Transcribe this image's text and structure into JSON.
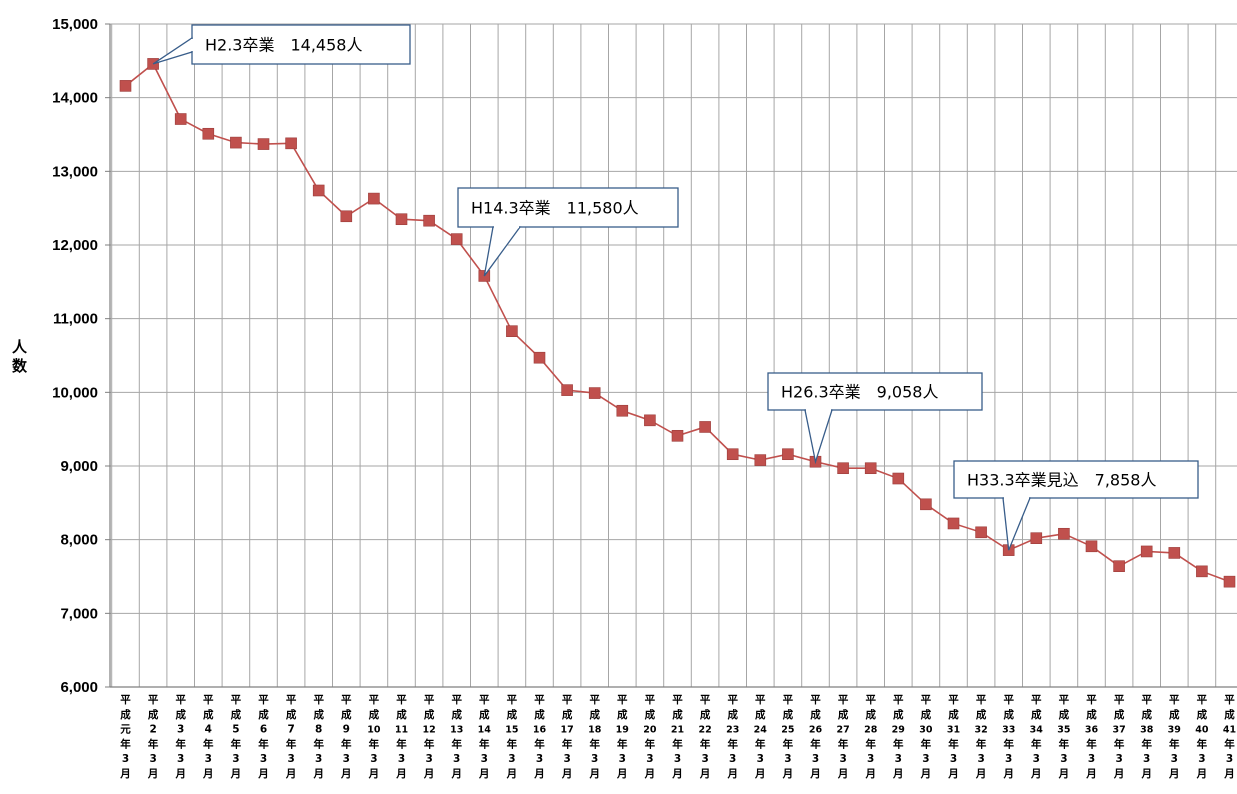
{
  "chart_data": {
    "type": "line",
    "title": "",
    "xlabel": "",
    "ylabel": "人数",
    "ylim": [
      6000,
      15000
    ],
    "y_ticks": [
      "6,000",
      "7,000",
      "8,000",
      "9,000",
      "10,000",
      "11,000",
      "12,000",
      "13,000",
      "14,000",
      "15,000"
    ],
    "grid": true,
    "series_color": "#C0504D",
    "categories": [
      "平成元年3月",
      "平成2年3月",
      "平成3年3月",
      "平成4年3月",
      "平成5年3月",
      "平成6年3月",
      "平成7年3月",
      "平成8年3月",
      "平成9年3月",
      "平成10年3月",
      "平成11年3月",
      "平成12年3月",
      "平成13年3月",
      "平成14年3月",
      "平成15年3月",
      "平成16年3月",
      "平成17年3月",
      "平成18年3月",
      "平成19年3月",
      "平成20年3月",
      "平成21年3月",
      "平成22年3月",
      "平成23年3月",
      "平成24年3月",
      "平成25年3月",
      "平成26年3月",
      "平成27年3月",
      "平成28年3月",
      "平成29年3月",
      "平成30年3月",
      "平成31年3月",
      "平成32年3月",
      "平成33年3月",
      "平成34年3月",
      "平成35年3月",
      "平成36年3月",
      "平成37年3月",
      "平成38年3月",
      "平成39年3月",
      "平成40年3月",
      "平成41年3月"
    ],
    "category_numbers": [
      "元",
      "2",
      "3",
      "4",
      "5",
      "6",
      "7",
      "8",
      "9",
      "10",
      "11",
      "12",
      "13",
      "14",
      "15",
      "16",
      "17",
      "18",
      "19",
      "20",
      "21",
      "22",
      "23",
      "24",
      "25",
      "26",
      "27",
      "28",
      "29",
      "30",
      "31",
      "32",
      "33",
      "34",
      "35",
      "36",
      "37",
      "38",
      "39",
      "40",
      "41"
    ],
    "series": [
      {
        "values": [
          14160,
          14458,
          13710,
          13510,
          13390,
          13370,
          13380,
          12740,
          12390,
          12630,
          12350,
          12330,
          12080,
          11580,
          10830,
          10470,
          10030,
          9990,
          9750,
          9620,
          9410,
          9530,
          9160,
          9080,
          9160,
          9058,
          8970,
          8970,
          8830,
          8480,
          8220,
          8100,
          7858,
          8020,
          8080,
          7910,
          7640,
          7840,
          7820,
          7570,
          7430
        ]
      }
    ],
    "annotations": [
      {
        "text": "H2.3卒業　14,458人",
        "index": 1
      },
      {
        "text": "H14.3卒業　11,580人",
        "index": 13
      },
      {
        "text": "H26.3卒業　9,058人",
        "index": 25
      },
      {
        "text": "H33.3卒業見込　7,858人",
        "index": 32
      }
    ]
  }
}
